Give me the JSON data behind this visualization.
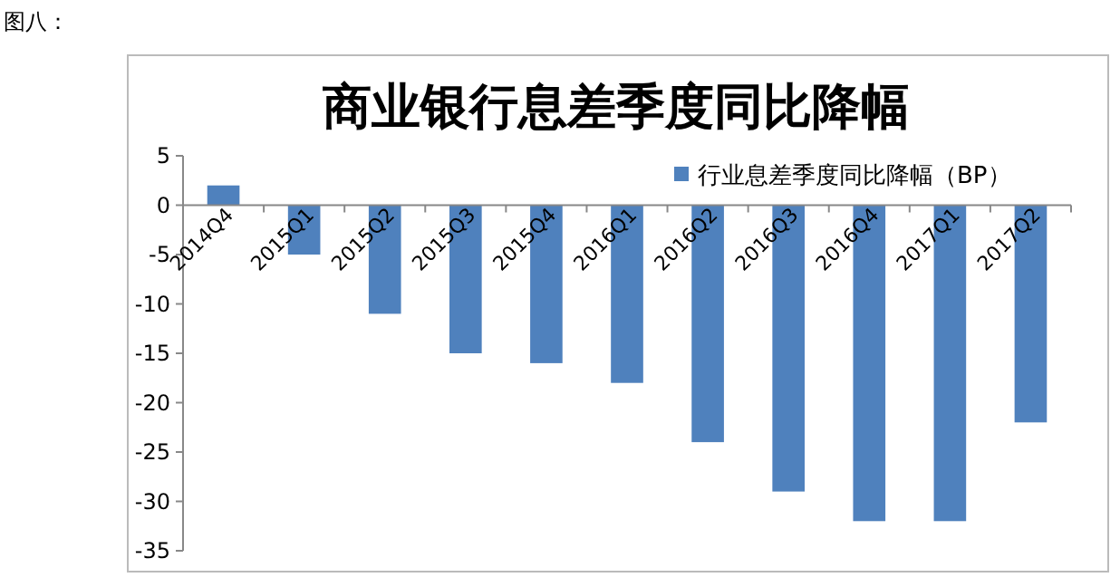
{
  "chart_data": {
    "type": "bar",
    "title": "商业银行息差季度同比降幅",
    "annotations": [
      "图八："
    ],
    "categories": [
      "2014Q4",
      "2015Q1",
      "2015Q2",
      "2015Q3",
      "2015Q4",
      "2016Q1",
      "2016Q2",
      "2016Q3",
      "2016Q4",
      "2017Q1",
      "2017Q2"
    ],
    "series": [
      {
        "name": "行业息差季度同比降幅（BP）",
        "color": "#4f81bd",
        "values": [
          2,
          -5,
          -11,
          -15,
          -16,
          -18,
          -24,
          -29,
          -32,
          -32,
          -22
        ]
      }
    ],
    "ylim": [
      -35,
      5
    ],
    "yticks": [
      -35,
      -30,
      -25,
      -20,
      -15,
      -10,
      -5,
      0,
      5
    ],
    "legend": "top right",
    "grid": false
  }
}
